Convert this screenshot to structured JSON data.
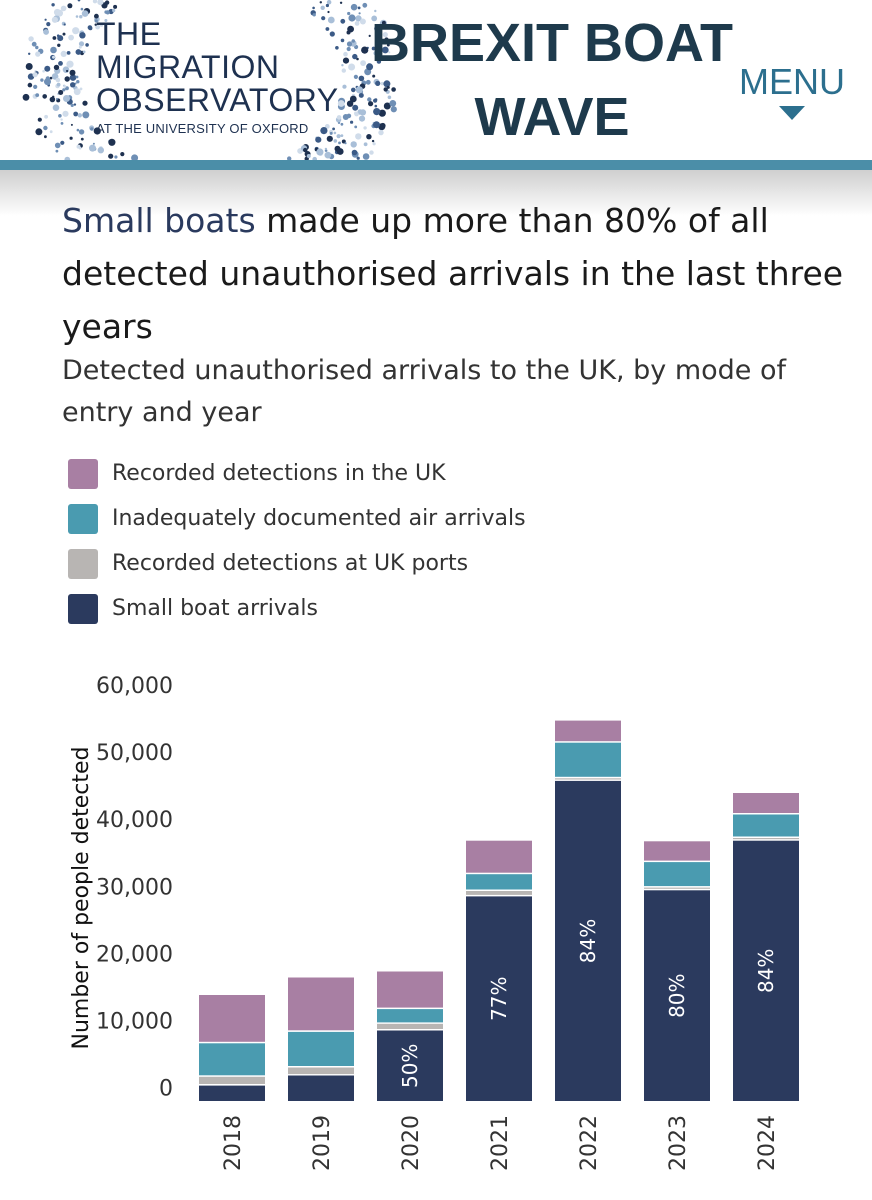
{
  "header": {
    "logo": {
      "line1": "THE",
      "line2": "MIGRATION",
      "line3": "OBSERVATORY",
      "sub": "AT THE UNIVERSITY OF OXFORD"
    },
    "brand_line1": "BREXIT BOAT",
    "brand_line2": "WAVE",
    "menu_label": "MENU"
  },
  "colors": {
    "uk": "#a87fa3",
    "air": "#4a9bb0",
    "ports": "#b8b5b3",
    "boats": "#2b3a5e",
    "accent": "#4b8ea8"
  },
  "chart_data": {
    "type": "bar",
    "stacked": true,
    "title_highlight": "Small boats",
    "title_rest": " made up more than 80% of all detected unauthorised arrivals in the last three years",
    "subtitle": "Detected unauthorised arrivals to the UK, by mode of entry and year",
    "ylabel": "Number of people detected",
    "xlabel": "",
    "ylim": [
      -2000,
      60000
    ],
    "yticks": [
      {
        "value": 60000,
        "label": "60,000"
      },
      {
        "value": 50000,
        "label": "50,000"
      },
      {
        "value": 40000,
        "label": "40,000"
      },
      {
        "value": 30000,
        "label": "30,000"
      },
      {
        "value": 20000,
        "label": "20,000"
      },
      {
        "value": 10000,
        "label": "10,000"
      },
      {
        "value": 0,
        "label": "0"
      }
    ],
    "grid": false,
    "legend_position": "top-left",
    "categories": [
      "2018",
      "2019",
      "2020",
      "2021",
      "2022",
      "2023",
      "2024"
    ],
    "series": [
      {
        "name": "Small boat arrivals",
        "key": "boats",
        "values": [
          300,
          1800,
          8500,
          28500,
          45700,
          29400,
          36800
        ]
      },
      {
        "name": "Recorded detections at UK ports",
        "key": "ports",
        "values": [
          1300,
          1200,
          1000,
          800,
          400,
          400,
          400
        ]
      },
      {
        "name": "Inadequately documented air arrivals",
        "key": "air",
        "values": [
          5000,
          5300,
          2200,
          2500,
          5300,
          3800,
          3500
        ]
      },
      {
        "name": "Recorded detections in the UK",
        "key": "uk",
        "values": [
          7200,
          8100,
          5600,
          5000,
          3300,
          3100,
          3200
        ]
      }
    ],
    "legend_order": [
      "uk",
      "air",
      "ports",
      "boats"
    ],
    "bar_labels": [
      "",
      "",
      "50%",
      "77%",
      "84%",
      "80%",
      "84%"
    ]
  }
}
